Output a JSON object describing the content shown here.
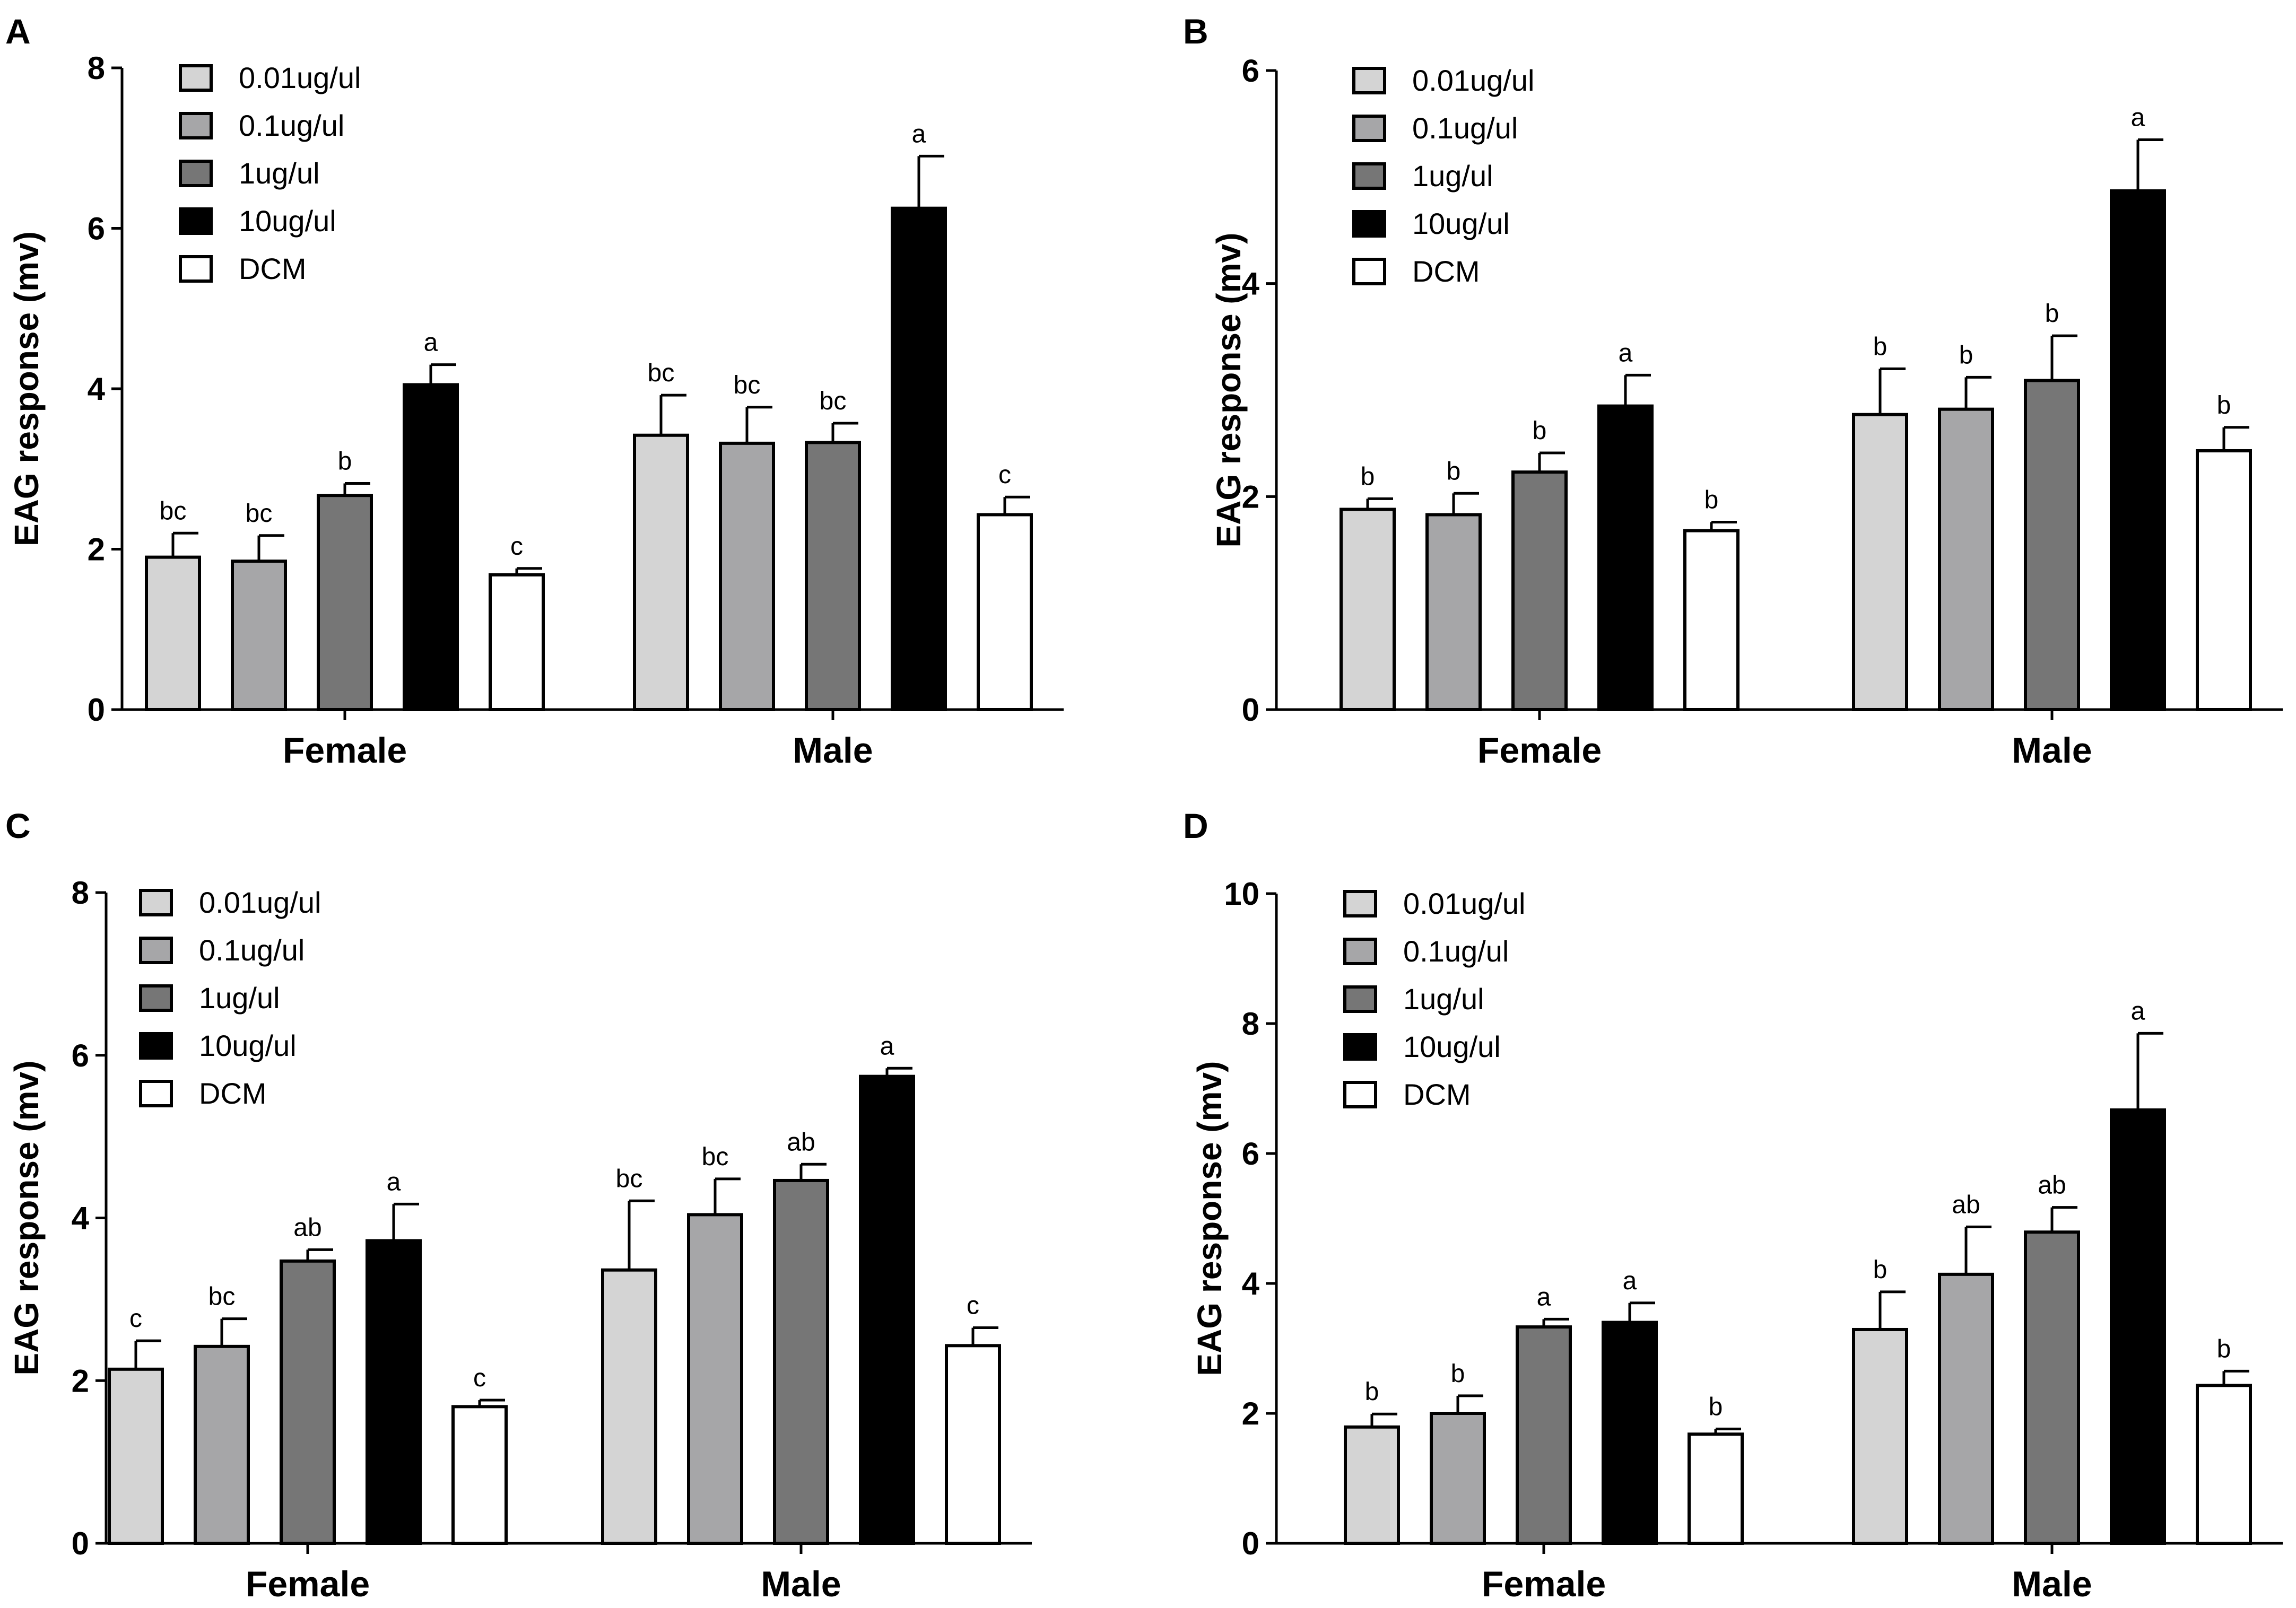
{
  "figure": {
    "series_styles": [
      {
        "name": "0.01ug/ul",
        "fill": "#d4d4d4"
      },
      {
        "name": "0.1ug/ul",
        "fill": "#a6a6a8"
      },
      {
        "name": "1ug/ul",
        "fill": "#767676"
      },
      {
        "name": "10ug/ul",
        "fill": "#000000"
      },
      {
        "name": "DCM",
        "fill": "#ffffff"
      }
    ]
  },
  "chart_data": [
    {
      "panel": "A",
      "type": "bar",
      "ylabel": "EAG response (mv)",
      "ylim": [
        0,
        8
      ],
      "yticks": [
        0,
        2,
        4,
        6,
        8
      ],
      "categories": [
        "Female",
        "Male"
      ],
      "legend_position": "top-left",
      "series": [
        {
          "name": "0.01ug/ul",
          "values": [
            1.9,
            3.42
          ],
          "errors": [
            0.3,
            0.5
          ],
          "labels": [
            "bc",
            "bc"
          ]
        },
        {
          "name": "0.1ug/ul",
          "values": [
            1.85,
            3.32
          ],
          "errors": [
            0.32,
            0.45
          ],
          "labels": [
            "bc",
            "bc"
          ]
        },
        {
          "name": "1ug/ul",
          "values": [
            2.67,
            3.33
          ],
          "errors": [
            0.15,
            0.24
          ],
          "labels": [
            "b",
            "bc"
          ]
        },
        {
          "name": "10ug/ul",
          "values": [
            4.05,
            6.25
          ],
          "errors": [
            0.25,
            0.65
          ],
          "labels": [
            "a",
            "a"
          ]
        },
        {
          "name": "DCM",
          "values": [
            1.68,
            2.43
          ],
          "errors": [
            0.08,
            0.22
          ],
          "labels": [
            "c",
            "c"
          ]
        }
      ]
    },
    {
      "panel": "B",
      "type": "bar",
      "ylabel": "EAG response (mv)",
      "ylim": [
        0,
        6
      ],
      "yticks": [
        0,
        2,
        4,
        6
      ],
      "categories": [
        "Female",
        "Male"
      ],
      "legend_position": "top-left",
      "series": [
        {
          "name": "0.01ug/ul",
          "values": [
            1.88,
            2.77
          ],
          "errors": [
            0.1,
            0.43
          ],
          "labels": [
            "b",
            "b"
          ]
        },
        {
          "name": "0.1ug/ul",
          "values": [
            1.83,
            2.82
          ],
          "errors": [
            0.2,
            0.3
          ],
          "labels": [
            "b",
            "b"
          ]
        },
        {
          "name": "1ug/ul",
          "values": [
            2.23,
            3.09
          ],
          "errors": [
            0.18,
            0.42
          ],
          "labels": [
            "b",
            "b"
          ]
        },
        {
          "name": "10ug/ul",
          "values": [
            2.85,
            4.87
          ],
          "errors": [
            0.29,
            0.48
          ],
          "labels": [
            "a",
            "a"
          ]
        },
        {
          "name": "DCM",
          "values": [
            1.68,
            2.43
          ],
          "errors": [
            0.08,
            0.22
          ],
          "labels": [
            "b",
            "b"
          ]
        }
      ]
    },
    {
      "panel": "C",
      "type": "bar",
      "ylabel": "EAG response (mv)",
      "ylim": [
        0,
        8
      ],
      "yticks": [
        0,
        2,
        4,
        6,
        8
      ],
      "categories": [
        "Female",
        "Male"
      ],
      "legend_position": "top-left",
      "series": [
        {
          "name": "0.01ug/ul",
          "values": [
            2.14,
            3.36
          ],
          "errors": [
            0.35,
            0.85
          ],
          "labels": [
            "c",
            "bc"
          ]
        },
        {
          "name": "0.1ug/ul",
          "values": [
            2.42,
            4.04
          ],
          "errors": [
            0.34,
            0.44
          ],
          "labels": [
            "bc",
            "bc"
          ]
        },
        {
          "name": "1ug/ul",
          "values": [
            3.47,
            4.46
          ],
          "errors": [
            0.14,
            0.2
          ],
          "labels": [
            "ab",
            "ab"
          ]
        },
        {
          "name": "10ug/ul",
          "values": [
            3.72,
            5.74
          ],
          "errors": [
            0.45,
            0.1
          ],
          "labels": [
            "a",
            "a"
          ]
        },
        {
          "name": "DCM",
          "values": [
            1.68,
            2.43
          ],
          "errors": [
            0.08,
            0.22
          ],
          "labels": [
            "c",
            "c"
          ]
        }
      ]
    },
    {
      "panel": "D",
      "type": "bar",
      "ylabel": "EAG response (mv)",
      "ylim": [
        0,
        10
      ],
      "yticks": [
        0,
        2,
        4,
        6,
        8,
        10
      ],
      "categories": [
        "Female",
        "Male"
      ],
      "legend_position": "top-left",
      "series": [
        {
          "name": "0.01ug/ul",
          "values": [
            1.79,
            3.29
          ],
          "errors": [
            0.2,
            0.58
          ],
          "labels": [
            "b",
            "b"
          ]
        },
        {
          "name": "0.1ug/ul",
          "values": [
            2.0,
            4.14
          ],
          "errors": [
            0.27,
            0.73
          ],
          "labels": [
            "b",
            "ab"
          ]
        },
        {
          "name": "1ug/ul",
          "values": [
            3.33,
            4.79
          ],
          "errors": [
            0.12,
            0.38
          ],
          "labels": [
            "a",
            "ab"
          ]
        },
        {
          "name": "10ug/ul",
          "values": [
            3.4,
            6.67
          ],
          "errors": [
            0.3,
            1.18
          ],
          "labels": [
            "a",
            "a"
          ]
        },
        {
          "name": "DCM",
          "values": [
            1.68,
            2.43
          ],
          "errors": [
            0.08,
            0.22
          ],
          "labels": [
            "b",
            "b"
          ]
        }
      ]
    }
  ]
}
